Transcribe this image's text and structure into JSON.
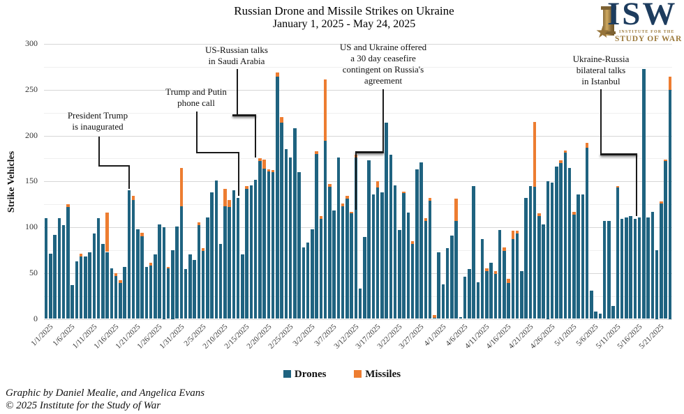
{
  "title": "Russian Drone and Missile Strikes on Ukraine",
  "subtitle": "January 1, 2025 - May 24, 2025",
  "y_axis_label": "Strike Vehicles",
  "legend": {
    "drones": "Drones",
    "missiles": "Missiles"
  },
  "footer": {
    "credit": "Graphic by Daniel Mealie, and Angelica Evans",
    "copyright": "© 2025 Institute for the Study of War"
  },
  "logo": {
    "acronym": "ISW",
    "line1": "INSTITUTE FOR THE",
    "line2": "STUDY OF WAR"
  },
  "colors": {
    "drones": "#1f6380",
    "missiles": "#ed7d31"
  },
  "annotations": [
    {
      "lines": [
        "President Trump",
        "is inaugurated"
      ]
    },
    {
      "lines": [
        "Trump and Putin",
        "phone call"
      ]
    },
    {
      "lines": [
        "US-Russian talks",
        "in Saudi Arabia"
      ]
    },
    {
      "lines": [
        "US and Ukraine offered",
        "a 30 day ceasefire",
        "contingent on Russia's",
        "agreement"
      ]
    },
    {
      "lines": [
        "Ukraine-Russia",
        "bilateral talks",
        "in Istanbul"
      ]
    }
  ],
  "chart_data": {
    "type": "bar",
    "stacked": true,
    "start_date": "1/1/2025",
    "end_date": "5/24/2025",
    "ylim": [
      0,
      300
    ],
    "y_ticks": [
      0,
      50,
      100,
      150,
      200,
      250,
      300
    ],
    "x_tick_labels": [
      "1/1/2025",
      "1/6/2025",
      "1/11/2025",
      "1/16/2025",
      "1/21/2025",
      "1/26/2025",
      "1/31/2025",
      "2/5/2025",
      "2/10/2025",
      "2/15/2025",
      "2/20/2025",
      "2/25/2025",
      "3/2/2025",
      "3/7/2025",
      "3/12/2025",
      "3/17/2025",
      "3/22/2025",
      "3/27/2025",
      "4/1/2025",
      "4/6/2025",
      "4/11/2025",
      "4/16/2025",
      "4/21/2025",
      "4/26/2025",
      "5/1/2025",
      "5/6/2025",
      "5/11/2025",
      "5/16/2025",
      "5/21/2025"
    ],
    "series": [
      {
        "name": "Drones",
        "values": [
          110,
          71,
          92,
          110,
          102,
          122,
          37,
          63,
          68,
          68,
          73,
          93,
          110,
          82,
          73,
          55,
          47,
          39,
          57,
          140,
          130,
          98,
          90,
          57,
          58,
          70,
          103,
          100,
          55,
          75,
          101,
          123,
          54,
          70,
          64,
          102,
          74,
          111,
          138,
          151,
          82,
          123,
          122,
          140,
          132,
          70,
          142,
          146,
          152,
          172,
          164,
          161,
          160,
          264,
          214,
          185,
          176,
          208,
          160,
          78,
          83,
          98,
          180,
          109,
          194,
          144,
          118,
          176,
          123,
          131,
          115,
          176,
          33,
          89,
          173,
          136,
          143,
          138,
          214,
          179,
          146,
          97,
          137,
          116,
          82,
          163,
          171,
          107,
          129,
          1,
          73,
          38,
          77,
          91,
          107,
          2,
          46,
          54,
          145,
          40,
          87,
          52,
          61,
          49,
          97,
          74,
          39,
          87,
          93,
          52,
          132,
          145,
          144,
          112,
          103,
          150,
          149,
          166,
          170,
          181,
          165,
          114,
          136,
          136,
          187,
          31,
          8,
          6,
          107,
          107,
          14,
          143,
          109,
          111,
          112,
          109,
          111,
          273,
          111,
          117,
          75,
          126,
          172,
          250
        ]
      },
      {
        "name": "Missiles",
        "values": [
          0,
          0,
          0,
          0,
          0,
          3,
          0,
          0,
          3,
          0,
          0,
          0,
          0,
          0,
          43,
          0,
          3,
          3,
          0,
          0,
          4,
          0,
          4,
          0,
          3,
          0,
          0,
          0,
          2,
          0,
          0,
          42,
          0,
          0,
          0,
          3,
          3,
          0,
          0,
          0,
          0,
          19,
          8,
          0,
          0,
          0,
          3,
          0,
          0,
          3,
          10,
          2,
          2,
          5,
          6,
          0,
          0,
          0,
          0,
          0,
          0,
          0,
          3,
          3,
          67,
          3,
          0,
          0,
          3,
          3,
          2,
          3,
          0,
          0,
          0,
          0,
          7,
          0,
          0,
          0,
          0,
          0,
          2,
          0,
          3,
          0,
          0,
          3,
          3,
          3,
          0,
          0,
          0,
          0,
          24,
          0,
          0,
          0,
          0,
          0,
          0,
          3,
          0,
          3,
          0,
          4,
          5,
          9,
          3,
          0,
          0,
          0,
          71,
          3,
          0,
          0,
          0,
          0,
          3,
          3,
          0,
          3,
          0,
          0,
          5,
          0,
          0,
          0,
          0,
          0,
          0,
          2,
          0,
          0,
          0,
          0,
          0,
          0,
          0,
          0,
          0,
          2,
          2,
          14
        ]
      }
    ]
  }
}
